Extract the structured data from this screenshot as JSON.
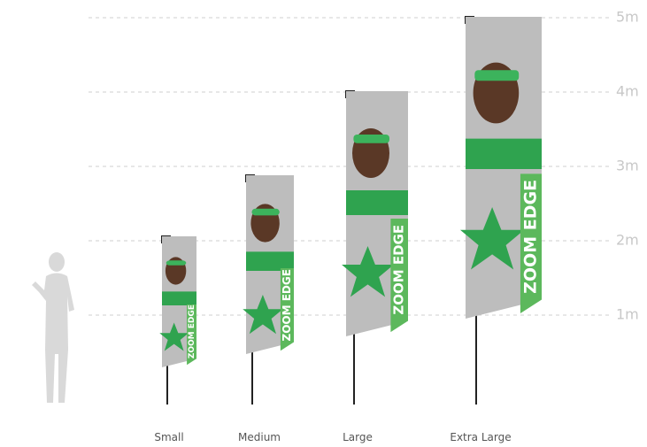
{
  "scale": {
    "ticks": [
      "1m",
      "2m",
      "3m",
      "4m",
      "5m"
    ]
  },
  "flags": {
    "names": [
      "Small",
      "Medium",
      "Large",
      "Extra Large"
    ]
  },
  "banner_text": "ZOOM EDGE"
}
